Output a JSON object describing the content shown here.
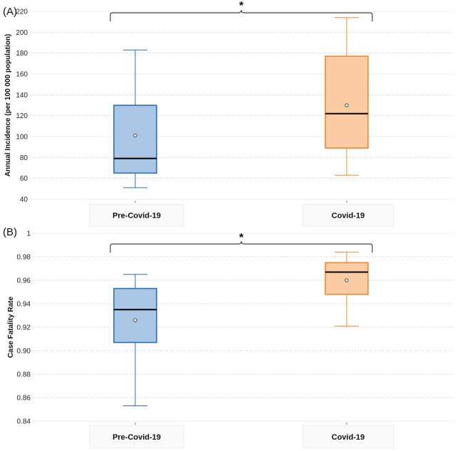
{
  "chart_data": [
    {
      "type": "box",
      "panel_label": "(A)",
      "ylabel": "Annual Incidence (per 100 000 population)",
      "ylim": [
        40,
        220
      ],
      "yticks": [
        40,
        60,
        80,
        100,
        120,
        140,
        160,
        180,
        200,
        220
      ],
      "tick_labels": [
        "40",
        "60",
        "80",
        "100",
        "120",
        "140",
        "160",
        "180",
        "200",
        "220"
      ],
      "grid": true,
      "significance": "*",
      "categories": [
        "Pre-Covid-19",
        "Covid-19"
      ],
      "boxes": [
        {
          "name": "Pre-Covid-19",
          "min": 51,
          "q1": 65,
          "median": 79,
          "q3": 130,
          "max": 183,
          "mean": 101
        },
        {
          "name": "Covid-19",
          "min": 63,
          "q1": 89,
          "median": 122,
          "q3": 177,
          "max": 214,
          "mean": 130
        }
      ]
    },
    {
      "type": "box",
      "panel_label": "(B)",
      "ylabel": "Case Fatality Rate",
      "ylim": [
        0.84,
        1.0
      ],
      "yticks": [
        0.84,
        0.86,
        0.88,
        0.9,
        0.92,
        0.94,
        0.96,
        0.98,
        1.0
      ],
      "tick_labels": [
        "0.84",
        "0.86",
        "0.88",
        "0.90",
        "0.92",
        "0.94",
        "0.96",
        "0.98",
        "1"
      ],
      "grid": true,
      "significance": "*",
      "categories": [
        "Pre-Covid-19",
        "Covid-19"
      ],
      "boxes": [
        {
          "name": "Pre-Covid-19",
          "min": 0.853,
          "q1": 0.907,
          "median": 0.935,
          "q3": 0.953,
          "max": 0.965,
          "mean": 0.926
        },
        {
          "name": "Covid-19",
          "min": 0.921,
          "q1": 0.948,
          "median": 0.967,
          "q3": 0.975,
          "max": 0.984,
          "mean": 0.96
        }
      ]
    }
  ],
  "colors": {
    "pre_fill": "#a9c6e4",
    "pre_stroke": "#2f6fb0",
    "covid_fill": "#fbcba4",
    "covid_stroke": "#f0892f",
    "grid": "#d9d9d9",
    "median": "#000000"
  }
}
